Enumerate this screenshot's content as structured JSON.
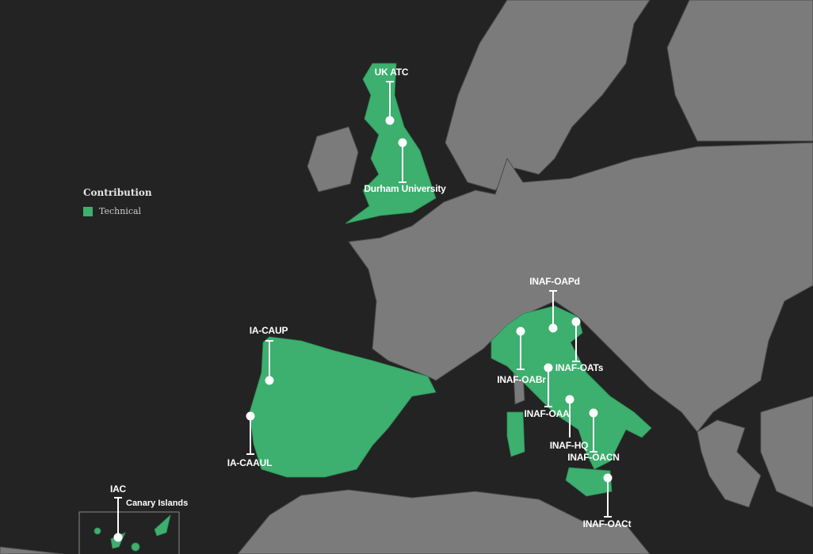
{
  "legend": {
    "title": "Contribution",
    "items": [
      {
        "label": "Technical",
        "color": "#3daf6e"
      }
    ]
  },
  "colors": {
    "background": "#232323",
    "land": "#7b7b7b",
    "contributor": "#3daf6e",
    "border": "#444444",
    "marker": "#ffffff"
  },
  "inset": {
    "label": "Canary Islands"
  },
  "institutions": [
    {
      "name": "UK ATC",
      "country": "United Kingdom"
    },
    {
      "name": "Durham University",
      "country": "United Kingdom"
    },
    {
      "name": "IA-CAUP",
      "country": "Portugal"
    },
    {
      "name": "IA-CAAUL",
      "country": "Portugal"
    },
    {
      "name": "IAC",
      "country": "Spain"
    },
    {
      "name": "INAF-OAPd",
      "country": "Italy"
    },
    {
      "name": "INAF-OABr",
      "country": "Italy"
    },
    {
      "name": "INAF-OATs",
      "country": "Italy"
    },
    {
      "name": "INAF-OAA",
      "country": "Italy"
    },
    {
      "name": "INAF-HQ",
      "country": "Italy"
    },
    {
      "name": "INAF-OACN",
      "country": "Italy"
    },
    {
      "name": "INAF-OACt",
      "country": "Italy"
    }
  ]
}
